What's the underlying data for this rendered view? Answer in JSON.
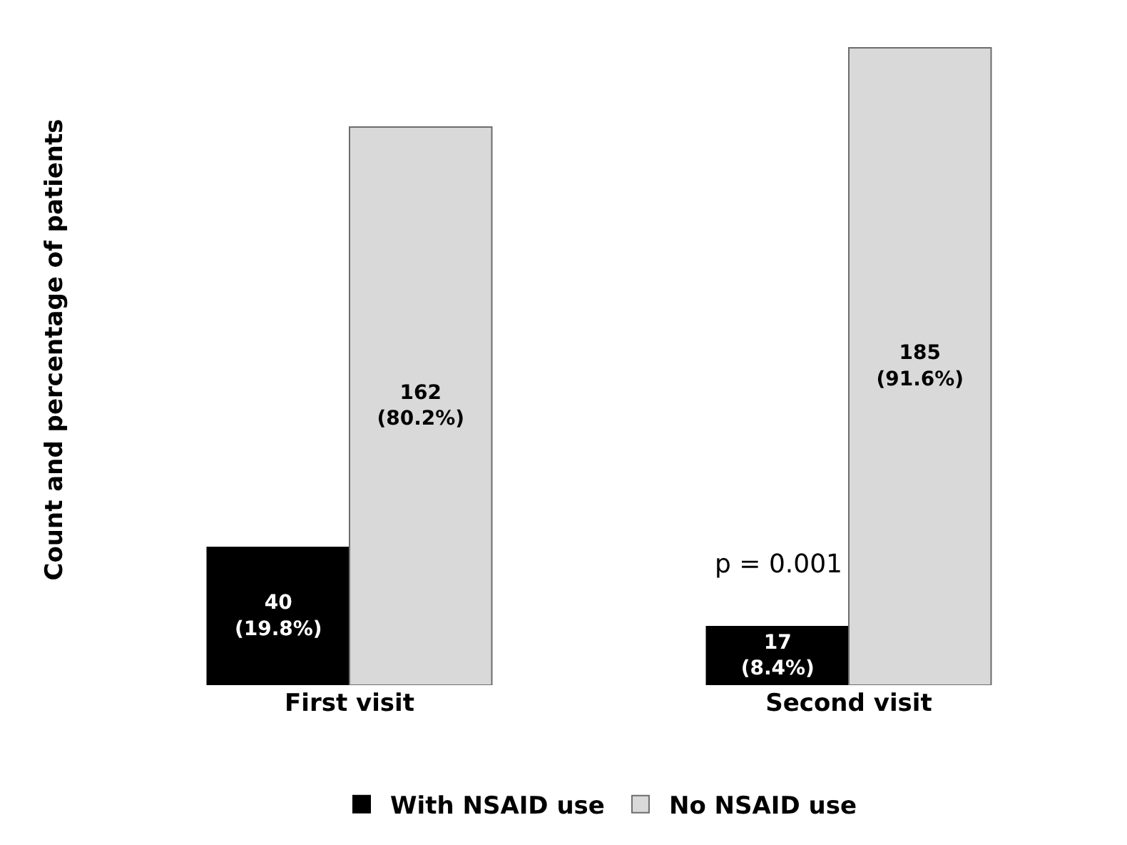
{
  "chart_data": {
    "type": "bar",
    "ylabel": "Count and percentage of patients",
    "categories": [
      "First visit",
      "Second visit"
    ],
    "series": [
      {
        "name": "With NSAID use",
        "color": "#000000",
        "values": [
          40,
          17
        ],
        "value_labels": [
          "40\n(19.8%)",
          "17\n(8.4%)"
        ]
      },
      {
        "name": "No NSAID use",
        "color": "#d9d9d9",
        "values": [
          162,
          185
        ],
        "value_labels": [
          "162\n(80.2%)",
          "185\n(91.6%)"
        ]
      }
    ],
    "annotations": [
      {
        "text": "p = 0.001",
        "x": "Second visit",
        "y": 30
      }
    ],
    "legend": "bottom",
    "grid": false
  }
}
